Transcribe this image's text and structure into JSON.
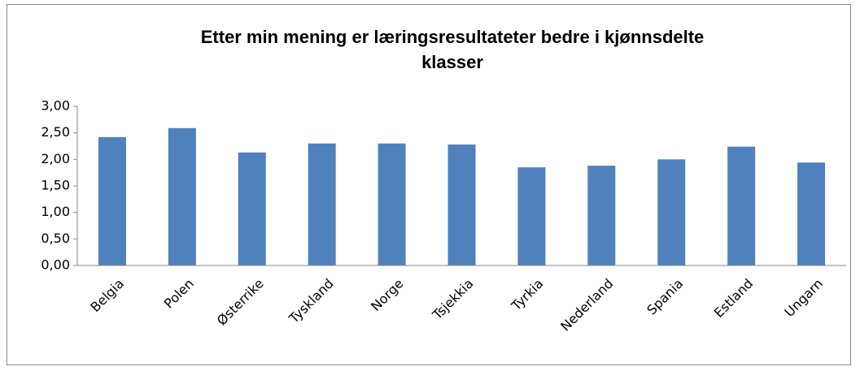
{
  "chart_data": {
    "type": "bar",
    "title": "Etter min mening er læringsresultateter bedre i kjønnsdelte klasser",
    "categories": [
      "Belgia",
      "Polen",
      "Østerrike",
      "Tyskland",
      "Norge",
      "Tsjekkia",
      "Tyrkia",
      "Nederland",
      "Spania",
      "Estland",
      "Ungarn"
    ],
    "values": [
      2.42,
      2.59,
      2.13,
      2.3,
      2.3,
      2.28,
      1.85,
      1.88,
      2.0,
      2.24,
      1.94
    ],
    "color": "#4f81bd",
    "ylim": [
      0,
      3
    ],
    "yticks": [
      {
        "value": 0,
        "label": "0,00"
      },
      {
        "value": 0.5,
        "label": "0,50"
      },
      {
        "value": 1,
        "label": "1,00"
      },
      {
        "value": 1.5,
        "label": "1,50"
      },
      {
        "value": 2,
        "label": "2,00"
      },
      {
        "value": 2.5,
        "label": "2,50"
      },
      {
        "value": 3,
        "label": "3,00"
      }
    ],
    "grid": false
  }
}
